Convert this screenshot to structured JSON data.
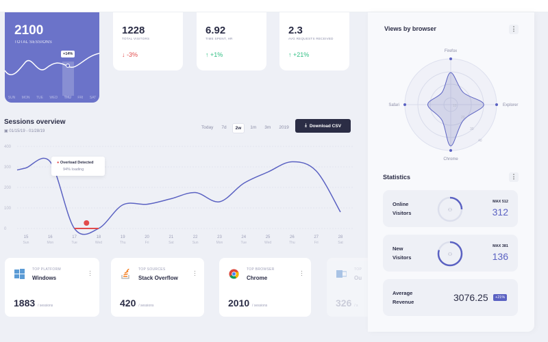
{
  "colors": {
    "accent": "#6b73c9",
    "line": "#5a61c2",
    "alert": "#e24b4b",
    "up": "#2fbf83",
    "dark": "#2b2d45"
  },
  "hero": {
    "value": "2100",
    "label": "TOTAL SESSIONS",
    "badge": "+14%",
    "days": [
      "SUN",
      "MON",
      "TUE",
      "WED",
      "THU",
      "FRI",
      "SAT"
    ],
    "active_day": "THU"
  },
  "stats": [
    {
      "value": "1228",
      "label": "TOTAL VISITORS",
      "change": "-3%",
      "direction": "down"
    },
    {
      "value": "6.92",
      "label": "TIME SPENT, HR",
      "change": "+1%",
      "direction": "up"
    },
    {
      "value": "2.3",
      "label": "AVG REQUESTS RECEIVED",
      "change": "+21%",
      "direction": "up"
    }
  ],
  "sessions": {
    "title": "Sessions overview",
    "date_range": "01/15/19 - 01/28/19",
    "ranges": [
      "Today",
      "7d",
      "2w",
      "1m",
      "3m",
      "2019"
    ],
    "active_range": "2w",
    "download": "Download CSV",
    "tooltip": {
      "title": "Overload Detected",
      "sub": "94% loading"
    }
  },
  "chart_data": {
    "type": "line",
    "x": [
      "15",
      "16",
      "17",
      "18",
      "19",
      "20",
      "21",
      "22",
      "23",
      "24",
      "25",
      "26",
      "27",
      "28"
    ],
    "x_sub": [
      "Sun",
      "Mon",
      "Tue",
      "Wed",
      "Thu",
      "Fri",
      "Sat",
      "Sun",
      "Mon",
      "Tue",
      "Wed",
      "Thu",
      "Fri",
      "Sat"
    ],
    "values": [
      295,
      325,
      0,
      0,
      115,
      118,
      145,
      175,
      130,
      220,
      275,
      325,
      280,
      80
    ],
    "yticks": [
      0,
      100,
      200,
      300,
      400
    ],
    "ylim": [
      0,
      400
    ],
    "grid": true,
    "alert_range": [
      "17",
      "18"
    ]
  },
  "bottom": [
    {
      "category": "TOP PLATFORM",
      "name": "Windows",
      "value": "1883",
      "unit": "/ sessions",
      "icon": "windows-icon"
    },
    {
      "category": "TOP SOURCES",
      "name": "Stack Overflow",
      "value": "420",
      "unit": "/ sessions",
      "icon": "stackoverflow-icon"
    },
    {
      "category": "TOP BROWSER",
      "name": "Chrome",
      "value": "2010",
      "unit": "/ sessions",
      "icon": "chrome-icon"
    },
    {
      "category": "TOP",
      "name": "Ou",
      "value": "326",
      "unit": "/ s",
      "icon": "outlook-icon"
    }
  ],
  "browser": {
    "title": "Views by browser",
    "axes": [
      "Firefox",
      "Explorer",
      "Chrome",
      "Safari"
    ],
    "values": [
      35,
      36,
      45,
      25
    ],
    "rings": [
      "10",
      "20",
      "30",
      "40"
    ]
  },
  "statistics": {
    "title": "Statistics",
    "items": [
      {
        "label1": "Online",
        "label2": "Visitors",
        "max": "MAX 512",
        "value": "312",
        "progress": 0.25
      },
      {
        "label1": "New",
        "label2": "Visitors",
        "max": "MAX 381",
        "value": "136",
        "progress": 0.8
      }
    ],
    "revenue": {
      "label1": "Average",
      "label2": "Revenue",
      "value": "3076.25",
      "badge": "+21%"
    }
  }
}
